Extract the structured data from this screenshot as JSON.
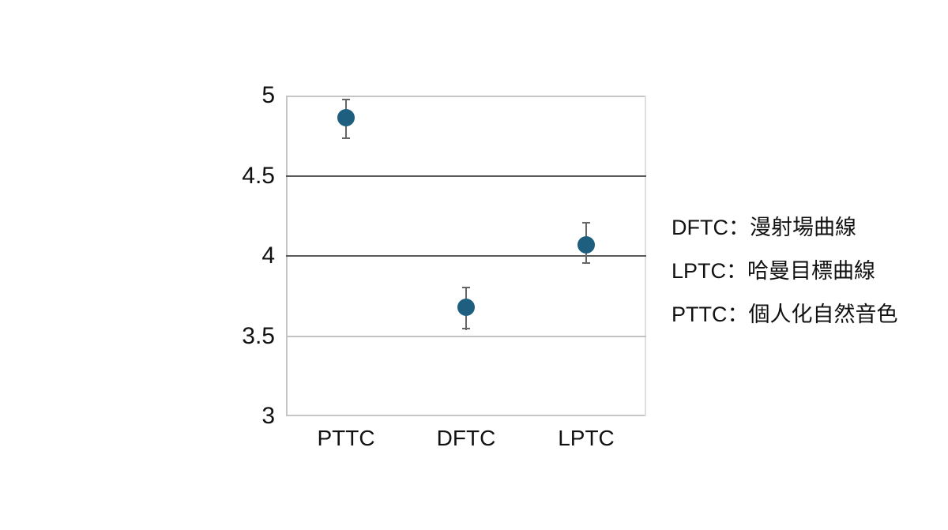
{
  "chart_data": {
    "type": "scatter",
    "title": "",
    "xlabel": "",
    "ylabel": "",
    "categories": [
      "PTTC",
      "DFTC",
      "LPTC"
    ],
    "values": [
      4.86,
      3.68,
      4.07
    ],
    "error_upper": [
      4.98,
      3.81,
      4.21
    ],
    "error_lower": [
      4.73,
      3.54,
      3.95
    ],
    "ylim": [
      3,
      5
    ],
    "yticks": [
      5,
      4.5,
      4,
      3.5,
      3
    ],
    "ytick_labels": [
      "5",
      "4.5",
      "4",
      "3.5",
      "3"
    ],
    "emphasized_gridlines": [
      4.5,
      4
    ],
    "light_gridlines": [
      3.5
    ],
    "grid": "horizontal",
    "legend_position": "right",
    "colors": {
      "marker": "#1E5F80",
      "error_bar": "#666666",
      "gridline_dark": "#595959",
      "gridline_light": "#c3c3c3",
      "plot_border": "#c6c6c6",
      "plot_border_right": "#e0e0e0",
      "text": "#111111"
    }
  },
  "annotations": {
    "lines": [
      "DFTC：漫射場曲線",
      "LPTC：哈曼目標曲線",
      "PTTC：個人化自然音色"
    ]
  }
}
